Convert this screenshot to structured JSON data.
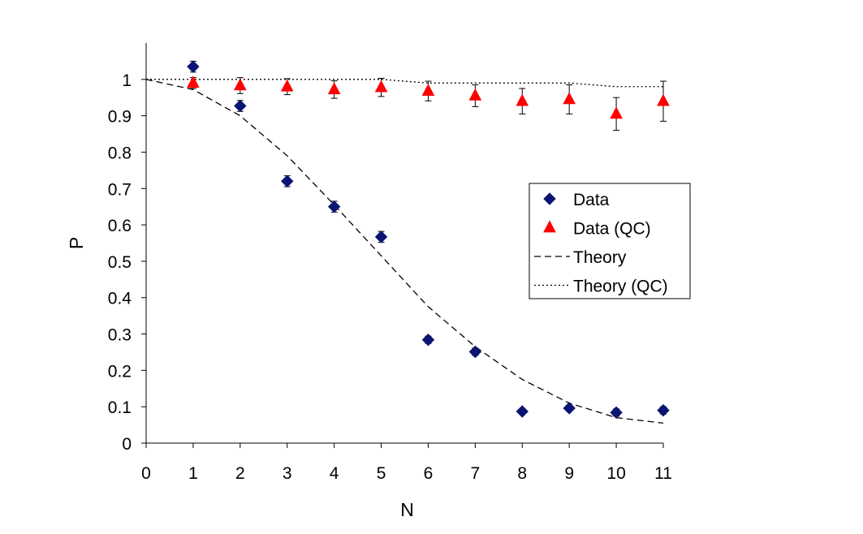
{
  "chart_data": {
    "type": "scatter",
    "title": "",
    "xlabel": "N",
    "ylabel": "P",
    "xlim": [
      0,
      11
    ],
    "ylim": [
      0,
      1.1
    ],
    "x_ticks": [
      "0",
      "1",
      "2",
      "3",
      "4",
      "5",
      "6",
      "7",
      "8",
      "9",
      "10",
      "11"
    ],
    "y_ticks": [
      "0",
      "0.1",
      "0.2",
      "0.3",
      "0.4",
      "0.5",
      "0.6",
      "0.7",
      "0.8",
      "0.9",
      "1"
    ],
    "grid": false,
    "legend_position": "right",
    "series": [
      {
        "name": "Data",
        "kind": "points",
        "marker": "diamond",
        "color": "#0a1473",
        "x": [
          1,
          2,
          3,
          4,
          5,
          6,
          7,
          8,
          9,
          10,
          11
        ],
        "y": [
          1.035,
          0.927,
          0.72,
          0.65,
          0.567,
          0.284,
          0.251,
          0.087,
          0.096,
          0.084,
          0.09
        ],
        "err": [
          0.015,
          0.015,
          0.015,
          0.015,
          0.015,
          0.01,
          0.01,
          0.006,
          0.008,
          0.01,
          0.01
        ]
      },
      {
        "name": "Data (QC)",
        "kind": "points",
        "marker": "triangle",
        "color": "#ff0000",
        "x": [
          1,
          2,
          3,
          4,
          5,
          6,
          7,
          8,
          9,
          10,
          11
        ],
        "y": [
          0.99,
          0.983,
          0.98,
          0.972,
          0.978,
          0.968,
          0.955,
          0.94,
          0.945,
          0.905,
          0.94
        ],
        "err": [
          0.015,
          0.022,
          0.022,
          0.024,
          0.025,
          0.027,
          0.03,
          0.035,
          0.04,
          0.045,
          0.055
        ]
      },
      {
        "name": "Theory",
        "kind": "line",
        "style": "dashed",
        "color": "#000000",
        "x": [
          0,
          1,
          2,
          3,
          4,
          5,
          6,
          7,
          8,
          9,
          10,
          11
        ],
        "y": [
          1.0,
          0.972,
          0.9,
          0.79,
          0.655,
          0.515,
          0.375,
          0.265,
          0.175,
          0.11,
          0.07,
          0.055
        ]
      },
      {
        "name": "Theory (QC)",
        "kind": "line",
        "style": "dotted",
        "color": "#000000",
        "x": [
          0,
          1,
          2,
          3,
          4,
          5,
          6,
          7,
          8,
          9,
          10,
          11
        ],
        "y": [
          1.0,
          1.0,
          1.0,
          1.0,
          1.0,
          1.0,
          0.99,
          0.99,
          0.99,
          0.99,
          0.98,
          0.98
        ]
      }
    ]
  }
}
